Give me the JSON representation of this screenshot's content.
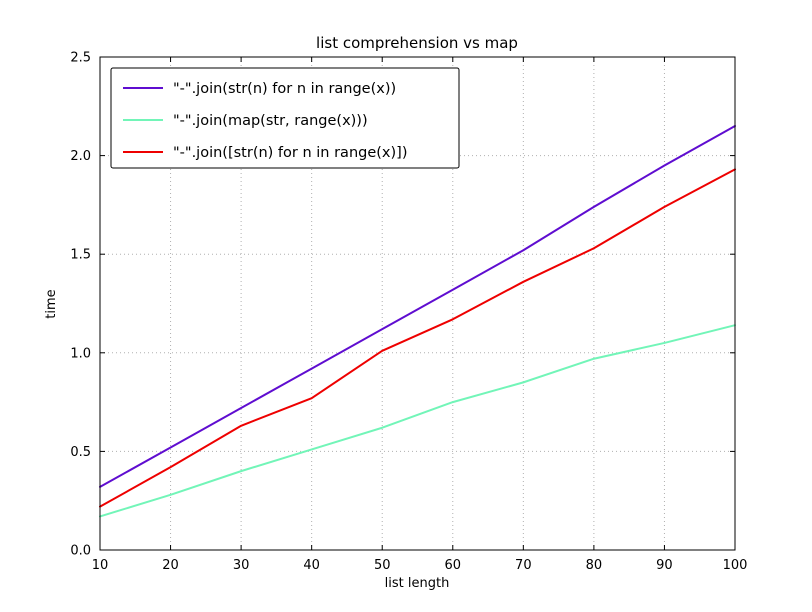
{
  "figure": {
    "background": "#ffffff",
    "frame_color": "#000000",
    "grid_color": "#b0b0b0",
    "text_color": "#000000"
  },
  "chart_data": {
    "type": "line",
    "title": "list comprehension vs map",
    "xlabel": "list length",
    "ylabel": "time",
    "xlim": [
      10,
      100
    ],
    "ylim": [
      0,
      2.5
    ],
    "grid": true,
    "legend_position": "upper left",
    "x": [
      10,
      20,
      30,
      40,
      50,
      60,
      70,
      80,
      90,
      100
    ],
    "x_ticks": [
      10,
      20,
      30,
      40,
      50,
      60,
      70,
      80,
      90,
      100
    ],
    "x_tick_labels": [
      "10",
      "20",
      "30",
      "40",
      "50",
      "60",
      "70",
      "80",
      "90",
      "100"
    ],
    "y_ticks": [
      0,
      0.5,
      1,
      1.5,
      2,
      2.5
    ],
    "y_tick_labels": [
      "0.0",
      "0.5",
      "1.0",
      "1.5",
      "2.0",
      "2.5"
    ],
    "series": [
      {
        "label": "\"-\".join(str(n) for n in range(x))",
        "color": "#5f0dd0",
        "values": [
          0.32,
          0.52,
          0.72,
          0.92,
          1.12,
          1.32,
          1.52,
          1.74,
          1.95,
          2.15
        ]
      },
      {
        "label": "\"-\".join(map(str, range(x)))",
        "color": "#72f5b8",
        "values": [
          0.17,
          0.28,
          0.4,
          0.51,
          0.62,
          0.75,
          0.85,
          0.97,
          1.05,
          1.14
        ]
      },
      {
        "label": "\"-\".join([str(n) for n in range(x)])",
        "color": "#ee0000",
        "values": [
          0.22,
          0.42,
          0.63,
          0.77,
          1.01,
          1.17,
          1.36,
          1.53,
          1.74,
          1.93
        ]
      }
    ]
  }
}
